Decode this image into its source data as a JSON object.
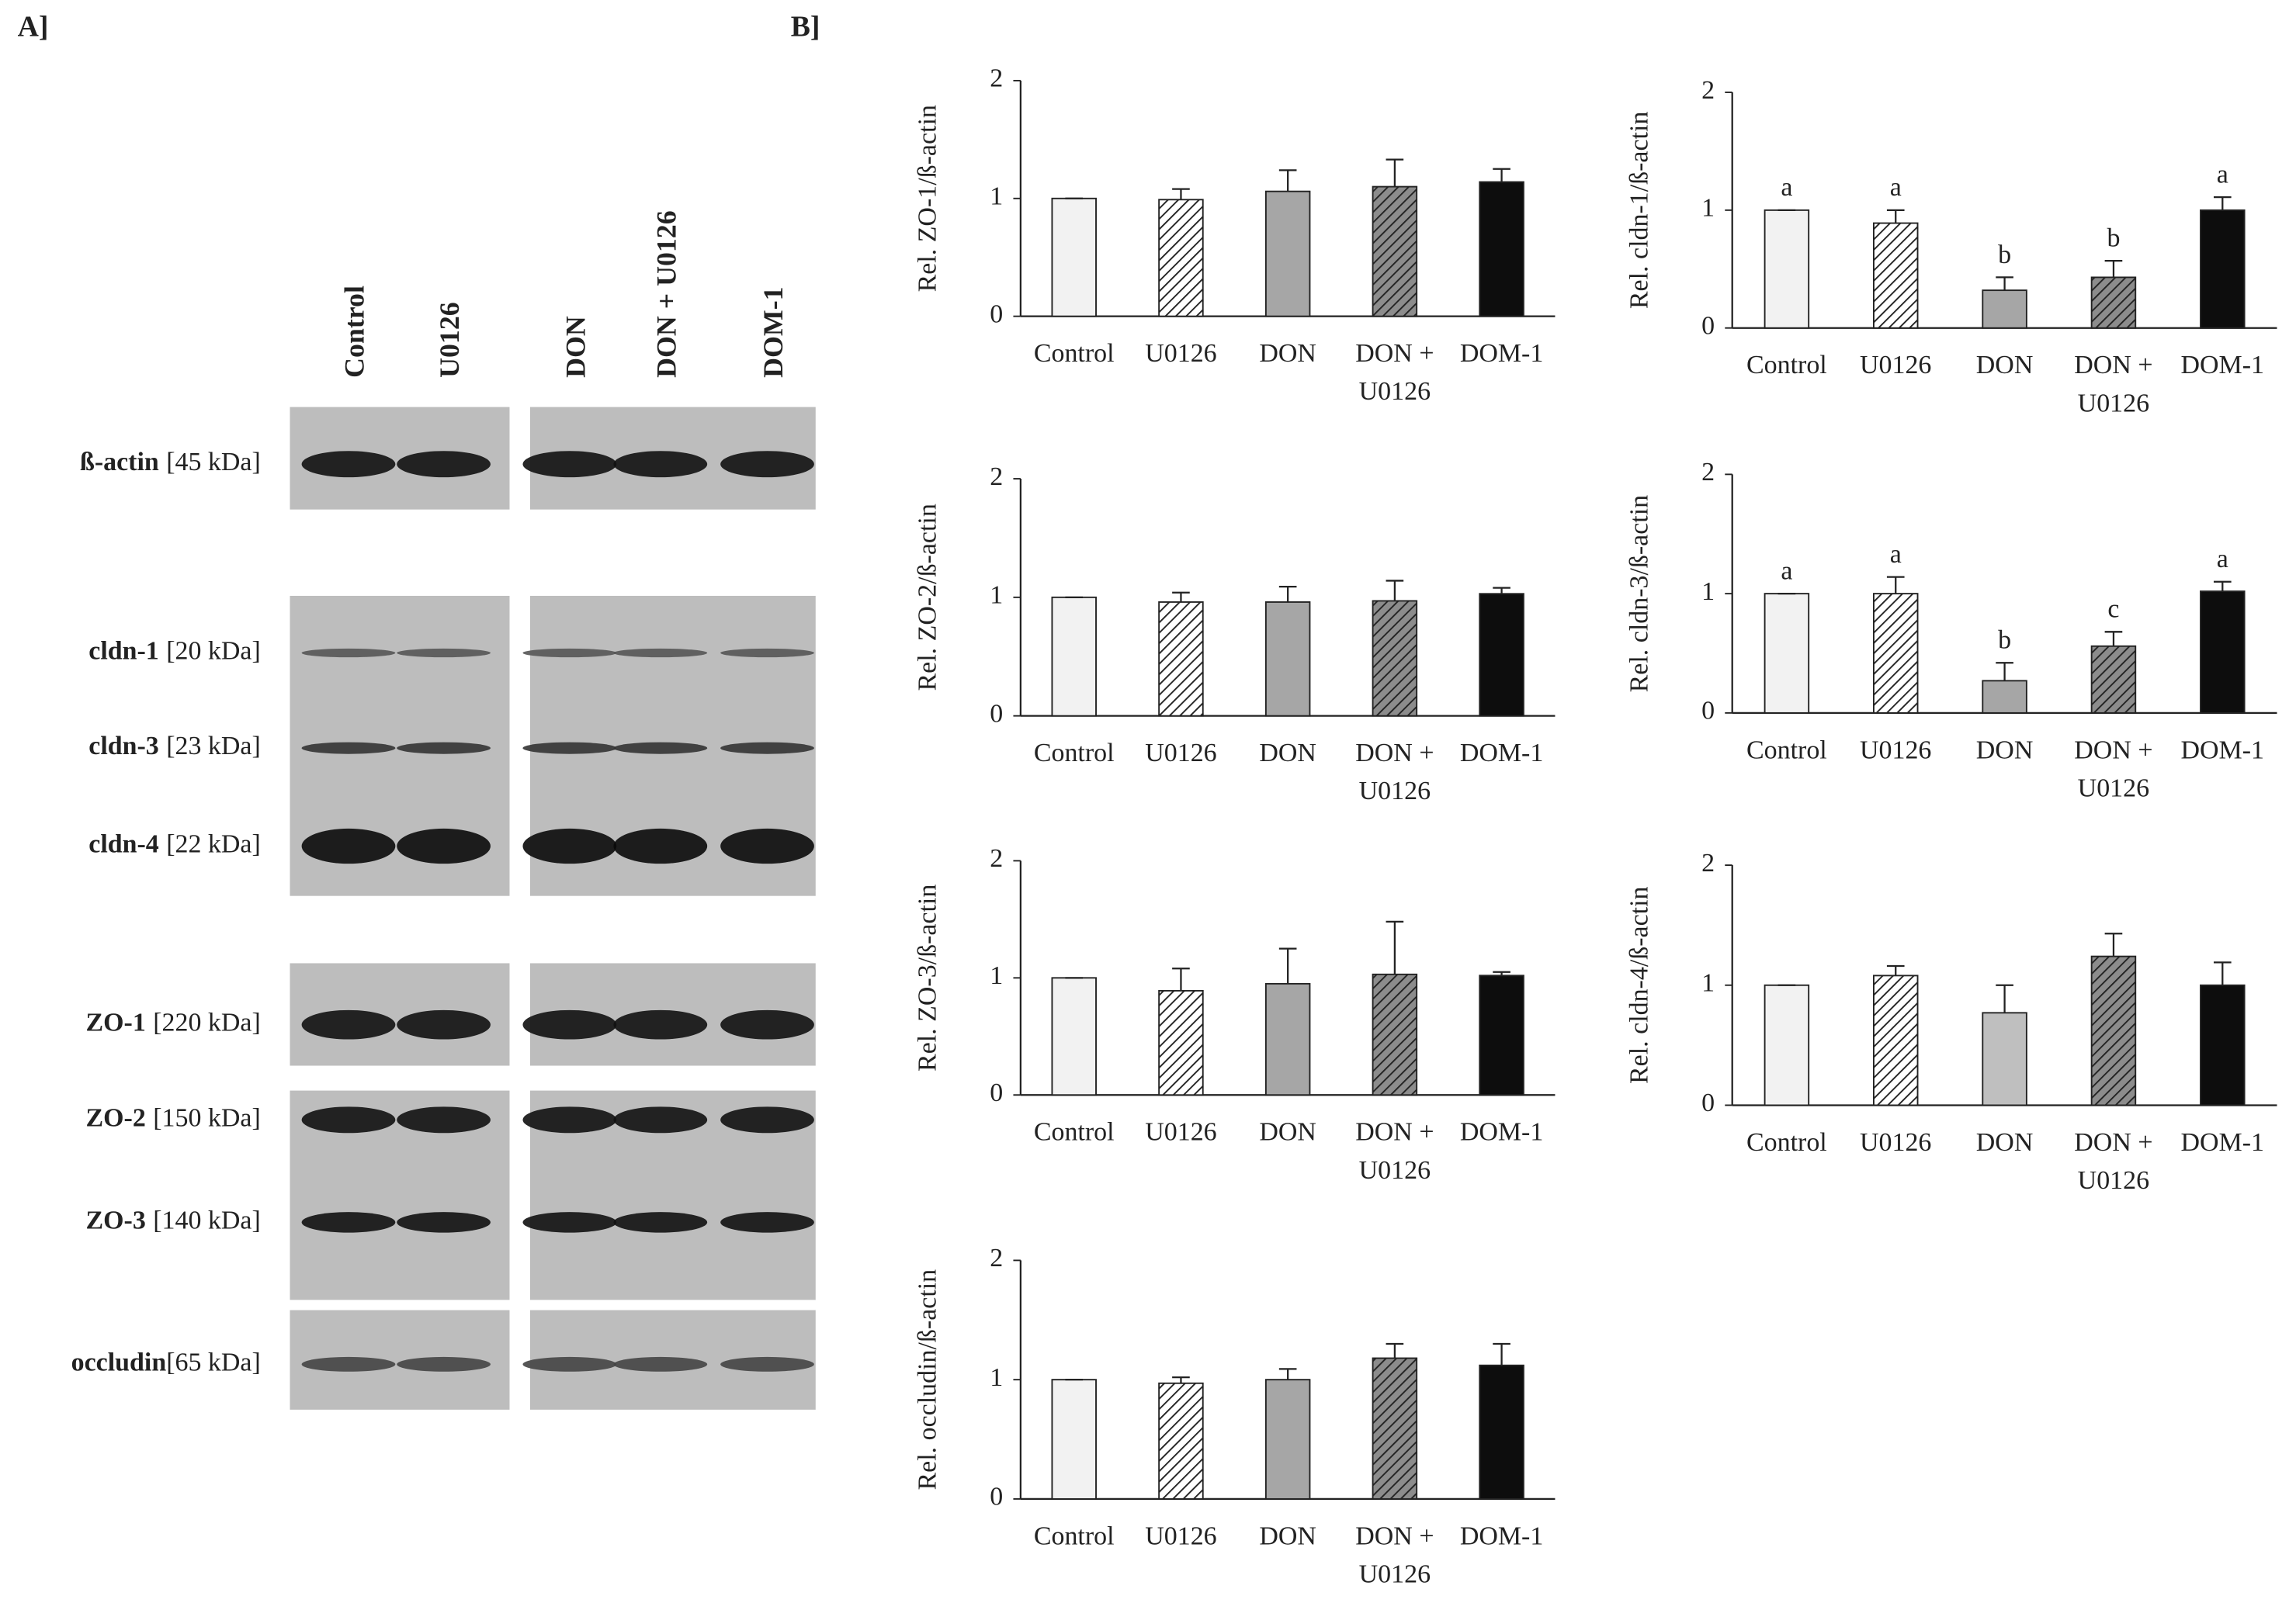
{
  "panel_a": {
    "label": "A]",
    "lanes": [
      "Control",
      "U0126",
      "DON",
      "DON + U0126",
      "DOM-1"
    ],
    "blots": [
      {
        "name": "ß-actin",
        "size": "[45 kDa]"
      },
      {
        "name": "cldn-1",
        "size": "[20 kDa]"
      },
      {
        "name": "cldn-3",
        "size": "[23 kDa]"
      },
      {
        "name": "cldn-4",
        "size": "[22 kDa]"
      },
      {
        "name": "ZO-1",
        "size": "[220 kDa]"
      },
      {
        "name": "ZO-2",
        "size": "[150 kDa]"
      },
      {
        "name": "ZO-3",
        "size": "[140 kDa]"
      },
      {
        "name": "occludin",
        "size": "[65 kDa]"
      }
    ]
  },
  "panel_b": {
    "label": "B]"
  },
  "chart_data": [
    {
      "type": "bar",
      "ylabel": "Rel. ZO-1/ß-actin",
      "categories": [
        "Control",
        "U0126",
        "DON",
        "DON + U0126",
        "DOM-1"
      ],
      "values": [
        1,
        0.99,
        1.06,
        1.1,
        1.14
      ],
      "errors": [
        0,
        0.09,
        0.18,
        0.23,
        0.11
      ],
      "colors": [
        "#f2f2f2",
        "#ffffff",
        "#a6a6a6",
        "#8c8c8c",
        "#0d0d0d"
      ],
      "hatched": [
        false,
        true,
        false,
        true,
        false
      ],
      "ylim": [
        0,
        2
      ],
      "yticks": [
        0,
        1,
        2
      ],
      "grid": false
    },
    {
      "type": "bar",
      "ylabel": "Rel. cldn-1/ß-actin",
      "categories": [
        "Control",
        "U0126",
        "DON",
        "DON + U0126",
        "DOM-1"
      ],
      "values": [
        1,
        0.89,
        0.32,
        0.43,
        1.0
      ],
      "errors": [
        0,
        0.11,
        0.11,
        0.14,
        0.11
      ],
      "annotations": [
        "a",
        "a",
        "b",
        "b",
        "a"
      ],
      "colors": [
        "#f2f2f2",
        "#ffffff",
        "#a6a6a6",
        "#8c8c8c",
        "#0d0d0d"
      ],
      "hatched": [
        false,
        true,
        false,
        true,
        false
      ],
      "ylim": [
        0,
        2
      ],
      "yticks": [
        0,
        1,
        2
      ],
      "grid": false
    },
    {
      "type": "bar",
      "ylabel": "Rel. ZO-2/ß-actin",
      "categories": [
        "Control",
        "U0126",
        "DON",
        "DON + U0126",
        "DOM-1"
      ],
      "values": [
        1,
        0.96,
        0.96,
        0.97,
        1.03
      ],
      "errors": [
        0,
        0.08,
        0.13,
        0.17,
        0.05
      ],
      "colors": [
        "#f2f2f2",
        "#ffffff",
        "#a6a6a6",
        "#8c8c8c",
        "#0d0d0d"
      ],
      "hatched": [
        false,
        true,
        false,
        true,
        false
      ],
      "ylim": [
        0,
        2
      ],
      "yticks": [
        0,
        1,
        2
      ],
      "grid": false
    },
    {
      "type": "bar",
      "ylabel": "Rel. cldn-3/ß-actin",
      "categories": [
        "Control",
        "U0126",
        "DON",
        "DON + U0126",
        "DOM-1"
      ],
      "values": [
        1,
        1.0,
        0.27,
        0.56,
        1.02
      ],
      "errors": [
        0,
        0.14,
        0.15,
        0.12,
        0.08
      ],
      "annotations": [
        "a",
        "a",
        "b",
        "c",
        "a"
      ],
      "colors": [
        "#f2f2f2",
        "#ffffff",
        "#a6a6a6",
        "#8c8c8c",
        "#0d0d0d"
      ],
      "hatched": [
        false,
        true,
        false,
        true,
        false
      ],
      "ylim": [
        0,
        2
      ],
      "yticks": [
        0,
        1,
        2
      ],
      "grid": false
    },
    {
      "type": "bar",
      "ylabel": "Rel. ZO-3/ß-actin",
      "categories": [
        "Control",
        "U0126",
        "DON",
        "DON + U0126",
        "DOM-1"
      ],
      "values": [
        1,
        0.89,
        0.95,
        1.03,
        1.02
      ],
      "errors": [
        0,
        0.19,
        0.3,
        0.45,
        0.03
      ],
      "colors": [
        "#f2f2f2",
        "#ffffff",
        "#a6a6a6",
        "#8c8c8c",
        "#0d0d0d"
      ],
      "hatched": [
        false,
        true,
        false,
        true,
        false
      ],
      "ylim": [
        0,
        2
      ],
      "yticks": [
        0,
        1,
        2
      ],
      "grid": false
    },
    {
      "type": "bar",
      "ylabel": "Rel. cldn-4/ß-actin",
      "categories": [
        "Control",
        "U0126",
        "DON",
        "DON + U0126",
        "DOM-1"
      ],
      "values": [
        1,
        1.08,
        0.77,
        1.24,
        1.0
      ],
      "errors": [
        0,
        0.08,
        0.23,
        0.19,
        0.19
      ],
      "colors": [
        "#f2f2f2",
        "#ffffff",
        "#bfbfbf",
        "#8c8c8c",
        "#0d0d0d"
      ],
      "hatched": [
        false,
        true,
        false,
        true,
        false
      ],
      "ylim": [
        0,
        2
      ],
      "yticks": [
        0,
        1,
        2
      ],
      "grid": false
    },
    {
      "type": "bar",
      "ylabel": "Rel. occludin/ß-actin",
      "categories": [
        "Control",
        "U0126",
        "DON",
        "DON + U0126",
        "DOM-1"
      ],
      "values": [
        1,
        0.97,
        1.0,
        1.18,
        1.12
      ],
      "errors": [
        0,
        0.05,
        0.09,
        0.12,
        0.18
      ],
      "colors": [
        "#f2f2f2",
        "#ffffff",
        "#a6a6a6",
        "#8c8c8c",
        "#0d0d0d"
      ],
      "hatched": [
        false,
        true,
        false,
        true,
        false
      ],
      "ylim": [
        0,
        2
      ],
      "yticks": [
        0,
        1,
        2
      ],
      "grid": false
    }
  ]
}
